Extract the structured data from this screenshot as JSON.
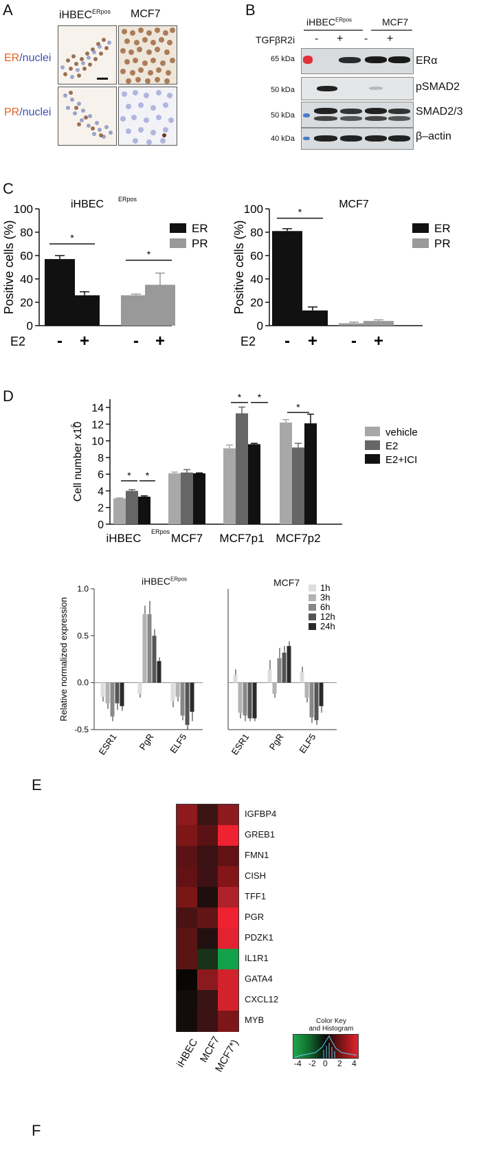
{
  "panel_letters": {
    "A": "A",
    "B": "B",
    "C": "C",
    "D": "D",
    "E": "E",
    "F": "F"
  },
  "panelA": {
    "col_ihbec": "iHBEC",
    "col_ihbec_sup": "ERpos",
    "col_mcf7": "MCF7",
    "row1_a": "ER",
    "row1_b": "/nuclei",
    "row2_a": "PR",
    "row2_b": "/nuclei",
    "orange": "#e0641e",
    "blue": "#3a4fb0"
  },
  "panelB": {
    "header_ihbec": "iHBEC",
    "header_ihbec_sup": "ERpos",
    "header_mcf7": "MCF7",
    "treatment_label": "TGFβR2i",
    "signs": [
      "-",
      "+",
      "-",
      "+"
    ],
    "mw": [
      "65 kDa",
      "50 kDa",
      "50 kDa",
      "40 kDa"
    ],
    "proteins": [
      "ERα",
      "pSMAD2",
      "SMAD2/3",
      "β–actin"
    ]
  },
  "panelC": {
    "ylabel": "Positive cells (%)",
    "x_treatment": "E2",
    "signs": [
      "-",
      "+",
      "-",
      "+"
    ],
    "star": "*",
    "ticks": [
      "0",
      "20",
      "40",
      "60",
      "80",
      "100"
    ]
  },
  "panelD": {
    "ylabel_main": "Cell number x10",
    "ylabel_sup": "-5",
    "ticks": [
      "0",
      "2",
      "4",
      "6",
      "8",
      "10",
      "12",
      "14"
    ],
    "group_label_sup": "ERpos",
    "star": "*"
  },
  "panelE": {
    "ylabel": "Relative normalized expression",
    "title_left": "iHBEC",
    "title_left_sup": "ERpos",
    "title_right": "MCF7",
    "ticks": [
      "-0.5",
      "0.0",
      "0.5",
      "1.0"
    ],
    "genes": [
      "ESR1",
      "PgR",
      "ELF5"
    ]
  },
  "panelF": {
    "genes": [
      "IGFBP4",
      "GREB1",
      "FMN1",
      "CISH",
      "TFF1",
      "PGR",
      "PDZK1",
      "IL1R1",
      "GATA4",
      "CXCL12",
      "MYB"
    ],
    "columns": [
      "iHBEC",
      "MCF7",
      "MCF7*)"
    ],
    "column_sup": "ERpos",
    "colorkey_title_1": "Color Key",
    "colorkey_title_2": "and Histogram",
    "colorkey_ticks": [
      "-4",
      "-2",
      "0",
      "2",
      "4"
    ],
    "cells": [
      [
        "#8e1a1e",
        "#3c1414",
        "#8c1a1e"
      ],
      [
        "#7e1618",
        "#5a1214",
        "#ee2230"
      ],
      [
        "#5c1214",
        "#3a1214",
        "#621214"
      ],
      [
        "#621214",
        "#3e1214",
        "#841618"
      ],
      [
        "#7a1616",
        "#1e0e0e",
        "#b0222a"
      ],
      [
        "#4a1212",
        "#621416",
        "#ee2230"
      ],
      [
        "#5a1414",
        "#221010",
        "#e22230"
      ],
      [
        "#5a1414",
        "#183218",
        "#12a04a"
      ],
      [
        "#0a0606",
        "#8a1a1e",
        "#d2222c"
      ],
      [
        "#140c0c",
        "#3a1414",
        "#d4222c"
      ],
      [
        "#140c0c",
        "#3c1214",
        "#7c1618"
      ]
    ]
  },
  "chart_data": [
    {
      "type": "bar",
      "panel": "C-left",
      "title": "iHBEC ERpos",
      "ylabel": "Positive cells (%)",
      "ylim": [
        0,
        100
      ],
      "xlabel": "E2",
      "categories": [
        "-",
        "+",
        "-",
        "+"
      ],
      "series": [
        {
          "name": "ER",
          "color": "#111111",
          "values": [
            57,
            26,
            null,
            null
          ],
          "errors": [
            3,
            3,
            null,
            null
          ]
        },
        {
          "name": "PR",
          "color": "#999999",
          "values": [
            null,
            null,
            26,
            35
          ],
          "errors": [
            null,
            null,
            1,
            10
          ]
        }
      ],
      "significance": [
        [
          "ER-",
          "ER+"
        ],
        [
          "PR-",
          "PR+"
        ]
      ],
      "legend": "top-right"
    },
    {
      "type": "bar",
      "panel": "C-right",
      "title": "MCF7",
      "ylabel": "Positive cells (%)",
      "ylim": [
        0,
        100
      ],
      "xlabel": "E2",
      "categories": [
        "-",
        "+",
        "-",
        "+"
      ],
      "series": [
        {
          "name": "ER",
          "color": "#111111",
          "values": [
            81,
            13,
            null,
            null
          ],
          "errors": [
            2,
            3,
            null,
            null
          ]
        },
        {
          "name": "PR",
          "color": "#999999",
          "values": [
            null,
            null,
            2,
            4
          ],
          "errors": [
            null,
            null,
            1,
            1
          ]
        }
      ],
      "significance": [
        [
          "ER-",
          "ER+"
        ]
      ],
      "legend": "top-right"
    },
    {
      "type": "bar",
      "panel": "D",
      "ylabel": "Cell number x10-5",
      "ylim": [
        0,
        15
      ],
      "categories": [
        "iHBEC",
        "MCF7",
        "MCF7p1",
        "MCF7p2"
      ],
      "series": [
        {
          "name": "vehicle",
          "color": "#a8a8a8",
          "values": [
            3.1,
            6.1,
            9.1,
            12.2
          ],
          "errors": [
            0.05,
            0.15,
            0.4,
            0.35
          ]
        },
        {
          "name": "E2",
          "color": "#666666",
          "values": [
            4.0,
            6.2,
            13.3,
            9.2
          ],
          "errors": [
            0.15,
            0.35,
            0.75,
            0.5
          ]
        },
        {
          "name": "E2+ICI",
          "color": "#111111",
          "values": [
            3.3,
            6.1,
            9.6,
            12.1
          ],
          "errors": [
            0.1,
            0.05,
            0.1,
            1.1
          ]
        }
      ],
      "significance": [
        [
          "iHBEC vehicle",
          "iHBEC E2"
        ],
        [
          "iHBEC E2",
          "iHBEC E2+ICI"
        ],
        [
          "MCF7p1 vehicle",
          "MCF7p1 E2"
        ],
        [
          "MCF7p1 E2",
          "MCF7p1 E2+ICI"
        ],
        [
          "MCF7p2 vehicle",
          "MCF7p2 E2"
        ]
      ],
      "legend": "right"
    },
    {
      "type": "bar",
      "panel": "E-left",
      "title": "iHBEC ERpos",
      "ylabel": "Relative normalized expression",
      "ylim": [
        -0.5,
        1.0
      ],
      "categories": [
        "ESR1",
        "PgR",
        "ELF5"
      ],
      "series": [
        {
          "name": "1h",
          "color": "#dddddd",
          "values": [
            -0.15,
            -0.12,
            -0.2
          ],
          "errors": [
            0.05,
            0.04,
            0.06
          ]
        },
        {
          "name": "3h",
          "color": "#b3b3b3",
          "values": [
            -0.22,
            0.73,
            -0.15
          ],
          "errors": [
            0.06,
            0.09,
            0.05
          ]
        },
        {
          "name": "6h",
          "color": "#888888",
          "values": [
            -0.36,
            0.73,
            -0.35
          ],
          "errors": [
            0.05,
            0.14,
            0.05
          ]
        },
        {
          "name": "12h",
          "color": "#555555",
          "values": [
            -0.22,
            0.5,
            -0.45
          ],
          "errors": [
            0.07,
            0.07,
            0.05
          ]
        },
        {
          "name": "24h",
          "color": "#2a2a2a",
          "values": [
            -0.25,
            0.23,
            -0.31
          ],
          "errors": [
            0.05,
            0.04,
            0.1
          ]
        }
      ]
    },
    {
      "type": "bar",
      "panel": "E-right",
      "title": "MCF7",
      "ylabel": "Relative normalized expression",
      "ylim": [
        -0.5,
        1.0
      ],
      "categories": [
        "ESR1",
        "PgR",
        "ELF5"
      ],
      "series": [
        {
          "name": "1h",
          "color": "#dddddd",
          "values": [
            0.08,
            0.14,
            0.11
          ],
          "errors": [
            0.06,
            0.1,
            0.06
          ]
        },
        {
          "name": "3h",
          "color": "#b3b3b3",
          "values": [
            -0.32,
            -0.12,
            -0.16
          ],
          "errors": [
            0.06,
            0.04,
            0.05
          ]
        },
        {
          "name": "6h",
          "color": "#888888",
          "values": [
            -0.35,
            0.26,
            -0.37
          ],
          "errors": [
            0.06,
            0.11,
            0.06
          ]
        },
        {
          "name": "12h",
          "color": "#555555",
          "values": [
            -0.38,
            0.32,
            -0.4
          ],
          "errors": [
            0.03,
            0.07,
            0.05
          ]
        },
        {
          "name": "24h",
          "color": "#2a2a2a",
          "values": [
            -0.38,
            0.39,
            -0.25
          ],
          "errors": [
            0.03,
            0.05,
            0.07
          ]
        }
      ],
      "legend": "top-right"
    }
  ]
}
